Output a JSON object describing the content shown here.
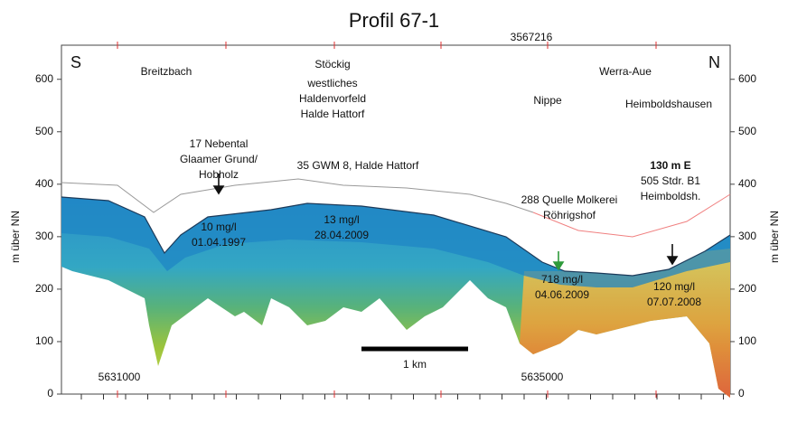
{
  "chart_data": {
    "type": "profile",
    "title": "Profil 67-1",
    "y_label": "m über NN",
    "ylim": [
      0,
      665
    ],
    "yticks": [
      0,
      100,
      200,
      300,
      400,
      500,
      600
    ],
    "left_side": "S",
    "right_side": "N",
    "top_coordinate": "3567216",
    "bottom_coordinates": [
      "5631000",
      "5635000"
    ],
    "scale_bar": "1 km",
    "coordinate_color": "#e03030",
    "annotations": [
      {
        "lines": [
          "Breitzbach"
        ]
      },
      {
        "lines": [
          "Stöckig"
        ]
      },
      {
        "lines": [
          "westliches",
          "Haldenvorfeld",
          "Halde Hattorf"
        ]
      },
      {
        "lines": [
          "Nippe"
        ]
      },
      {
        "lines": [
          "Werra-Aue"
        ]
      },
      {
        "lines": [
          "Heimboldshausen"
        ]
      },
      {
        "lines": [
          "17 Nebental",
          "Glaamer Grund/",
          "Hobholz"
        ]
      },
      {
        "lines": [
          "35 GWM 8, Halde Hattorf"
        ]
      },
      {
        "lines": [
          "130 m E",
          "505 Stdr. B1",
          "Heimboldsh."
        ]
      },
      {
        "lines": [
          "288 Quelle Molkerei",
          "Röhrigshof"
        ],
        "color": "#2e9a3a"
      },
      {
        "lines": [
          "10 mg/l",
          "01.04.1997"
        ]
      },
      {
        "lines": [
          "13 mg/l",
          "28.04.2009"
        ]
      },
      {
        "lines": [
          "718 mg/l",
          "04.06.2009"
        ],
        "color": "#2e9a3a"
      },
      {
        "lines": [
          "120 mg/l",
          "07.07.2008"
        ]
      }
    ]
  }
}
